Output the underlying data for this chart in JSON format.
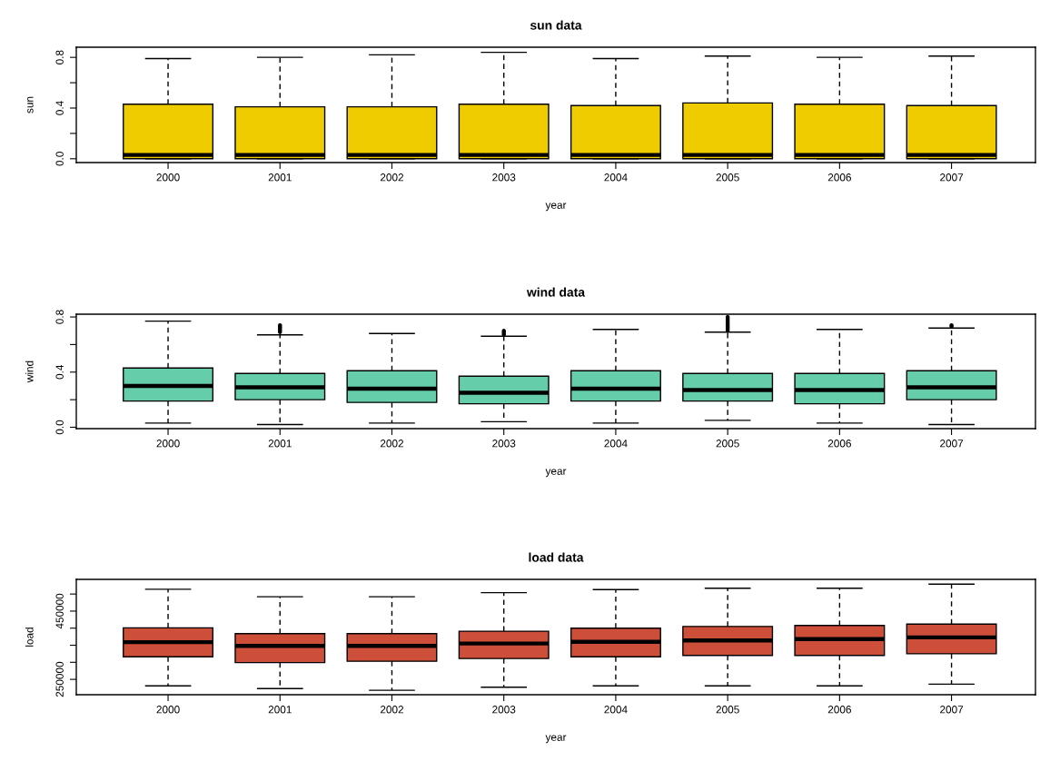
{
  "chart_data": [
    {
      "type": "box",
      "title": "sun data",
      "xlabel": "year",
      "ylabel": "sun",
      "categories": [
        "2000",
        "2001",
        "2002",
        "2003",
        "2004",
        "2005",
        "2006",
        "2007"
      ],
      "ylim": [
        -0.03,
        0.88
      ],
      "yticks": [
        {
          "value": 0,
          "label": "0.0"
        },
        {
          "value": 0.2,
          "label": null
        },
        0.4,
        {
          "value": 0.6,
          "label": null
        },
        0.8
      ],
      "grid": false,
      "series": [
        {
          "color": "#eecc00",
          "boxes": [
            {
              "low": 0.0,
              "q1": 0.0,
              "median": 0.03,
              "q3": 0.43,
              "high": 0.79
            },
            {
              "low": 0.0,
              "q1": 0.0,
              "median": 0.03,
              "q3": 0.41,
              "high": 0.8
            },
            {
              "low": 0.0,
              "q1": 0.0,
              "median": 0.03,
              "q3": 0.41,
              "high": 0.82
            },
            {
              "low": 0.0,
              "q1": 0.0,
              "median": 0.03,
              "q3": 0.43,
              "high": 0.84
            },
            {
              "low": 0.0,
              "q1": 0.0,
              "median": 0.03,
              "q3": 0.42,
              "high": 0.79
            },
            {
              "low": 0.0,
              "q1": 0.0,
              "median": 0.03,
              "q3": 0.44,
              "high": 0.81
            },
            {
              "low": 0.0,
              "q1": 0.0,
              "median": 0.03,
              "q3": 0.43,
              "high": 0.8
            },
            {
              "low": 0.0,
              "q1": 0.0,
              "median": 0.03,
              "q3": 0.42,
              "high": 0.81
            }
          ]
        }
      ]
    },
    {
      "type": "box",
      "title": "wind data",
      "xlabel": "year",
      "ylabel": "wind",
      "categories": [
        "2000",
        "2001",
        "2002",
        "2003",
        "2004",
        "2005",
        "2006",
        "2007"
      ],
      "ylim": [
        -0.01,
        0.82
      ],
      "yticks": [
        {
          "value": 0,
          "label": "0.0"
        },
        {
          "value": 0.2,
          "label": null
        },
        0.4,
        {
          "value": 0.6,
          "label": null
        },
        0.8
      ],
      "grid": false,
      "series": [
        {
          "color": "#66cdaa",
          "boxes": [
            {
              "low": 0.03,
              "q1": 0.19,
              "median": 0.3,
              "q3": 0.43,
              "high": 0.77
            },
            {
              "low": 0.02,
              "q1": 0.2,
              "median": 0.29,
              "q3": 0.39,
              "high": 0.67,
              "outliers": [
                0.69,
                0.7,
                0.71,
                0.72,
                0.73,
                0.74
              ]
            },
            {
              "low": 0.03,
              "q1": 0.18,
              "median": 0.28,
              "q3": 0.41,
              "high": 0.68
            },
            {
              "low": 0.04,
              "q1": 0.17,
              "median": 0.25,
              "q3": 0.37,
              "high": 0.66,
              "outliers": [
                0.67,
                0.68,
                0.69,
                0.7
              ]
            },
            {
              "low": 0.03,
              "q1": 0.19,
              "median": 0.28,
              "q3": 0.41,
              "high": 0.71
            },
            {
              "low": 0.05,
              "q1": 0.19,
              "median": 0.27,
              "q3": 0.39,
              "high": 0.69,
              "outliers": [
                0.7,
                0.71,
                0.72,
                0.73,
                0.74,
                0.75,
                0.76,
                0.77,
                0.78,
                0.79,
                0.8
              ]
            },
            {
              "low": 0.03,
              "q1": 0.17,
              "median": 0.27,
              "q3": 0.39,
              "high": 0.71
            },
            {
              "low": 0.02,
              "q1": 0.2,
              "median": 0.29,
              "q3": 0.41,
              "high": 0.72,
              "outliers": [
                0.73,
                0.74
              ]
            }
          ]
        }
      ]
    },
    {
      "type": "box",
      "title": "load data",
      "xlabel": "year",
      "ylabel": "load",
      "categories": [
        "2000",
        "2001",
        "2002",
        "2003",
        "2004",
        "2005",
        "2006",
        "2007"
      ],
      "ylim": [
        205000,
        543000
      ],
      "yticks": [
        250000,
        {
          "value": 300000,
          "label": null
        },
        {
          "value": 350000,
          "label": null
        },
        {
          "value": 400000,
          "label": null
        },
        450000,
        {
          "value": 500000,
          "label": null
        }
      ],
      "grid": false,
      "series": [
        {
          "color": "#cd4f39",
          "boxes": [
            {
              "low": 231000,
              "q1": 316000,
              "median": 359000,
              "q3": 401000,
              "high": 514000
            },
            {
              "low": 223000,
              "q1": 299000,
              "median": 348000,
              "q3": 384000,
              "high": 492000
            },
            {
              "low": 218000,
              "q1": 303000,
              "median": 348000,
              "q3": 384000,
              "high": 492000
            },
            {
              "low": 227000,
              "q1": 311000,
              "median": 355000,
              "q3": 391000,
              "high": 504000
            },
            {
              "low": 231000,
              "q1": 316000,
              "median": 360000,
              "q3": 400000,
              "high": 513000
            },
            {
              "low": 231000,
              "q1": 320000,
              "median": 364000,
              "q3": 405000,
              "high": 517000
            },
            {
              "low": 231000,
              "q1": 320000,
              "median": 368000,
              "q3": 408000,
              "high": 517000
            },
            {
              "low": 236000,
              "q1": 325000,
              "median": 373000,
              "q3": 412000,
              "high": 529000
            }
          ]
        }
      ]
    }
  ]
}
